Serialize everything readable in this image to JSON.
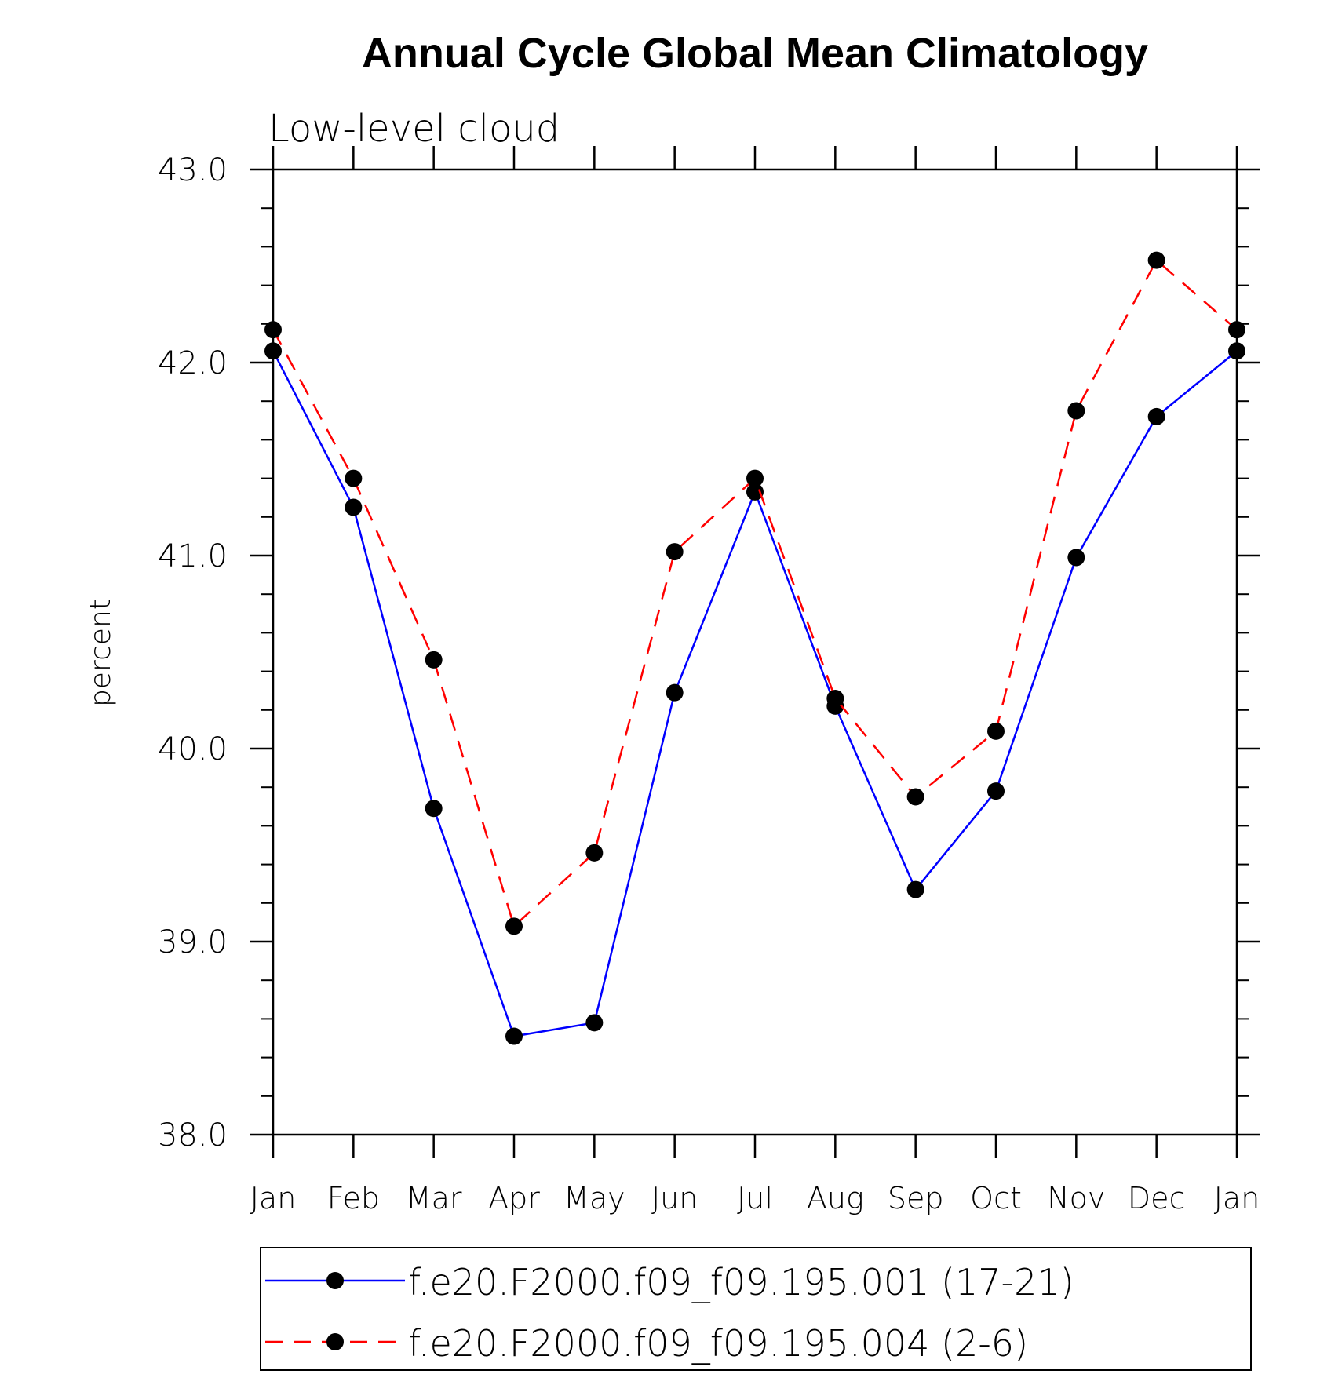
{
  "chart_data": {
    "type": "line",
    "title": "Annual Cycle Global Mean Climatology",
    "subtitle": "Low-level cloud",
    "xlabel": "",
    "ylabel": "percent",
    "categories": [
      "Jan",
      "Feb",
      "Mar",
      "Apr",
      "May",
      "Jun",
      "Jul",
      "Aug",
      "Sep",
      "Oct",
      "Nov",
      "Dec",
      "Jan"
    ],
    "ylim": [
      38.0,
      43.0
    ],
    "yticks": [
      "38.0",
      "39.0",
      "40.0",
      "41.0",
      "42.0",
      "43.0"
    ],
    "yminor_step": 0.2,
    "grid": false,
    "legend_position": "bottom",
    "series": [
      {
        "name": "f.e20.F2000.f09_f09.195.001 (17-21)",
        "color": "#0000ff",
        "style": "solid",
        "marker": "filled-circle",
        "values": [
          42.06,
          41.25,
          39.69,
          38.51,
          38.58,
          40.29,
          41.33,
          40.22,
          39.27,
          39.78,
          40.99,
          41.72,
          42.06
        ]
      },
      {
        "name": "f.e20.F2000.f09_f09.195.004 (2-6)",
        "color": "#ff0000",
        "style": "dashed",
        "marker": "filled-circle",
        "values": [
          42.17,
          41.4,
          40.46,
          39.08,
          39.46,
          41.02,
          41.4,
          40.26,
          39.75,
          40.09,
          41.75,
          42.53,
          42.17
        ]
      }
    ]
  }
}
